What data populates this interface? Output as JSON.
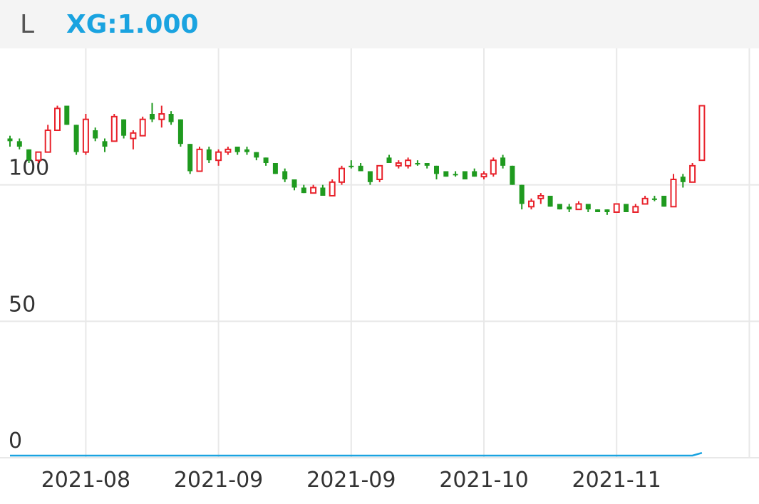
{
  "header": {
    "left_label": "L",
    "indicator_label": "XG:1.000"
  },
  "chart_data": {
    "type": "candlestick",
    "open": [
      117,
      116,
      113,
      109,
      112,
      120,
      129,
      122,
      112,
      120,
      116,
      116,
      124,
      117,
      118,
      126,
      124,
      126,
      124,
      115,
      105,
      113,
      109,
      112,
      114,
      113,
      112,
      110,
      108,
      105,
      102,
      99,
      97,
      99,
      96,
      101,
      107,
      107,
      105,
      102,
      110,
      107,
      107,
      108,
      108,
      107,
      105,
      104,
      105,
      105,
      103,
      104,
      110,
      107,
      100,
      92,
      95,
      96,
      93,
      92,
      91,
      93,
      91,
      91,
      90,
      93,
      90,
      93,
      95,
      96,
      92,
      103,
      101,
      109
    ],
    "high": [
      118,
      117,
      113,
      112,
      122,
      129,
      129,
      122,
      126,
      121,
      117,
      126,
      124,
      120,
      125,
      130,
      129,
      127,
      124,
      115,
      114,
      114,
      113,
      114,
      114,
      114,
      112,
      110,
      108,
      106,
      102,
      100,
      100,
      100,
      102,
      107,
      109,
      108,
      105,
      107,
      111,
      109,
      110,
      109,
      108,
      107,
      105,
      105,
      105,
      106,
      105,
      110,
      111,
      107,
      100,
      95,
      97,
      96,
      93,
      93,
      94,
      93,
      91,
      91,
      93,
      93,
      93,
      96,
      96,
      96,
      104,
      104,
      108,
      129
    ],
    "low": [
      114,
      113,
      108,
      108,
      112,
      120,
      122,
      111,
      111,
      116,
      112,
      116,
      117,
      113,
      118,
      123,
      121,
      122,
      114,
      104,
      105,
      108,
      107,
      111,
      111,
      111,
      109,
      107,
      104,
      101,
      98,
      97,
      97,
      96,
      96,
      100,
      106,
      105,
      100,
      101,
      108,
      106,
      106,
      107,
      106,
      102,
      103,
      103,
      102,
      103,
      102,
      103,
      106,
      100,
      91,
      91,
      93,
      92,
      91,
      90,
      91,
      90,
      90,
      89,
      90,
      90,
      90,
      93,
      94,
      92,
      92,
      99,
      101,
      109
    ],
    "close": [
      116,
      114,
      109,
      112,
      120,
      128,
      122,
      112,
      124,
      117,
      114,
      125,
      118,
      119,
      124,
      124,
      126,
      123,
      115,
      105,
      113,
      109,
      112,
      113,
      112,
      112,
      110,
      108,
      104,
      102,
      99,
      97,
      99,
      96,
      101,
      106,
      107,
      105,
      101,
      107,
      108,
      108,
      109,
      108,
      107,
      104,
      103,
      104,
      102,
      103,
      104,
      109,
      107,
      100,
      93,
      94,
      96,
      92,
      91,
      91,
      93,
      91,
      90,
      90,
      93,
      90,
      92,
      95,
      95,
      92,
      102,
      101,
      107,
      129
    ],
    "up_color": "#e8212a",
    "down_color": "#1f9a1f",
    "series": [
      {
        "name": "XG",
        "color": "#1aa3e0",
        "values": [
          0,
          0,
          0,
          0,
          0,
          0,
          0,
          0,
          0,
          0,
          0,
          0,
          0,
          0,
          0,
          0,
          0,
          0,
          0,
          0,
          0,
          0,
          0,
          0,
          0,
          0,
          0,
          0,
          0,
          0,
          0,
          0,
          0,
          0,
          0,
          0,
          0,
          0,
          0,
          0,
          0,
          0,
          0,
          0,
          0,
          0,
          0,
          0,
          0,
          0,
          0,
          0,
          0,
          0,
          0,
          0,
          0,
          0,
          0,
          0,
          0,
          0,
          0,
          0,
          0,
          0,
          0,
          0,
          0,
          0,
          0,
          0,
          0,
          1
        ]
      }
    ],
    "xticks": [
      {
        "value": 8,
        "label": "2021-08"
      },
      {
        "value": 22,
        "label": "2021-09"
      },
      {
        "value": 36,
        "label": "2021-09"
      },
      {
        "value": 50,
        "label": "2021-10"
      },
      {
        "value": 64,
        "label": "2021-11"
      },
      {
        "value": 78,
        "label": null
      }
    ],
    "ylim": [
      0,
      150
    ],
    "yticks": [
      0,
      50,
      100
    ],
    "grid": true
  }
}
